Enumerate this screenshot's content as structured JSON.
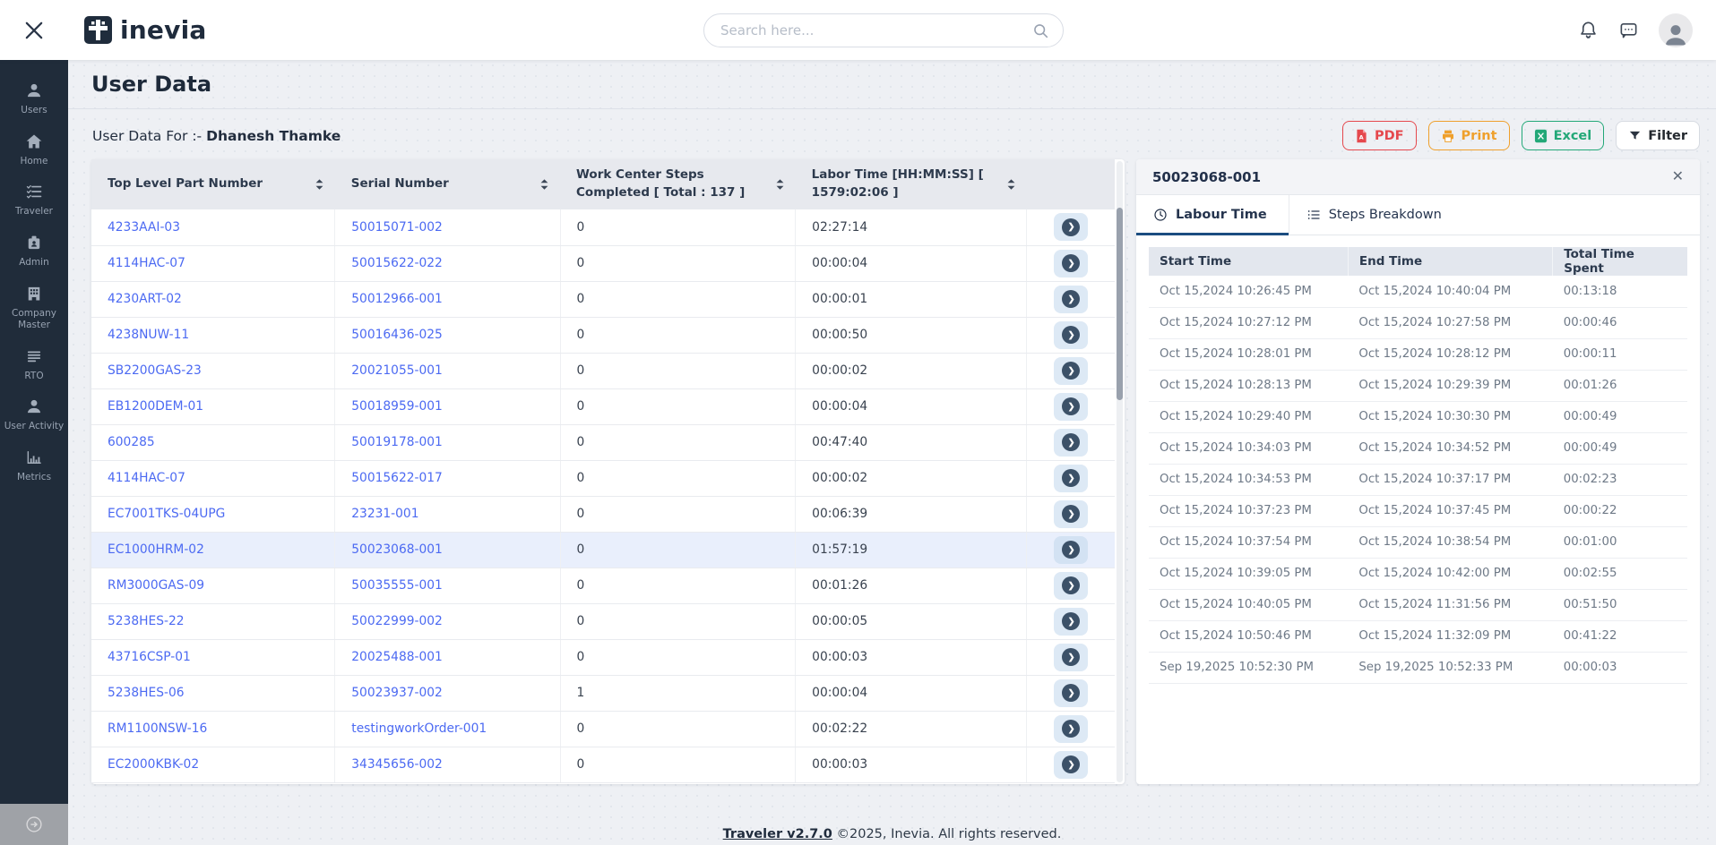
{
  "topbar": {
    "logo_text": "inevia",
    "search_placeholder": "Search here..."
  },
  "sidebar": {
    "items": [
      {
        "label": "Users"
      },
      {
        "label": "Home"
      },
      {
        "label": "Traveler"
      },
      {
        "label": "Admin"
      },
      {
        "label": "Company Master"
      },
      {
        "label": "RTO"
      },
      {
        "label": "User Activity"
      },
      {
        "label": "Metrics"
      }
    ]
  },
  "page": {
    "title": "User Data",
    "subtitle_label": "User Data For :-",
    "subtitle_name": "Dhanesh Thamke"
  },
  "toolbar": {
    "pdf_label": "PDF",
    "print_label": "Print",
    "excel_label": "Excel",
    "filter_label": "Filter"
  },
  "main_table": {
    "columns": [
      "Top Level Part Number",
      "Serial Number",
      "Work Center Steps Completed [ Total : 137 ]",
      "Labor Time [HH:MM:SS] [ 1579:02:06 ]"
    ],
    "rows": [
      {
        "part": "4233AAI-03",
        "serial": "50015071-002",
        "steps": "0",
        "labor": "02:27:14",
        "highlighted": false
      },
      {
        "part": "4114HAC-07",
        "serial": "50015622-022",
        "steps": "0",
        "labor": "00:00:04",
        "highlighted": false
      },
      {
        "part": "4230ART-02",
        "serial": "50012966-001",
        "steps": "0",
        "labor": "00:00:01",
        "highlighted": false
      },
      {
        "part": "4238NUW-11",
        "serial": "50016436-025",
        "steps": "0",
        "labor": "00:00:50",
        "highlighted": false
      },
      {
        "part": "SB2200GAS-23",
        "serial": "20021055-001",
        "steps": "0",
        "labor": "00:00:02",
        "highlighted": false
      },
      {
        "part": "EB1200DEM-01",
        "serial": "50018959-001",
        "steps": "0",
        "labor": "00:00:04",
        "highlighted": false
      },
      {
        "part": "600285",
        "serial": "50019178-001",
        "steps": "0",
        "labor": "00:47:40",
        "highlighted": false
      },
      {
        "part": "4114HAC-07",
        "serial": "50015622-017",
        "steps": "0",
        "labor": "00:00:02",
        "highlighted": false
      },
      {
        "part": "EC7001TKS-04UPG",
        "serial": "23231-001",
        "steps": "0",
        "labor": "00:06:39",
        "highlighted": false
      },
      {
        "part": "EC1000HRM-02",
        "serial": "50023068-001",
        "steps": "0",
        "labor": "01:57:19",
        "highlighted": true
      },
      {
        "part": "RM3000GAS-09",
        "serial": "50035555-001",
        "steps": "0",
        "labor": "00:01:26",
        "highlighted": false
      },
      {
        "part": "5238HES-22",
        "serial": "50022999-002",
        "steps": "0",
        "labor": "00:00:05",
        "highlighted": false
      },
      {
        "part": "43716CSP-01",
        "serial": "20025488-001",
        "steps": "0",
        "labor": "00:00:03",
        "highlighted": false
      },
      {
        "part": "5238HES-06",
        "serial": "50023937-002",
        "steps": "1",
        "labor": "00:00:04",
        "highlighted": false
      },
      {
        "part": "RM1100NSW-16",
        "serial": "testingworkOrder-001",
        "steps": "0",
        "labor": "00:02:22",
        "highlighted": false
      },
      {
        "part": "EC2000KBK-02",
        "serial": "34345656-002",
        "steps": "0",
        "labor": "00:00:03",
        "highlighted": false
      }
    ]
  },
  "detail_panel": {
    "title": "50023068-001",
    "tabs": [
      {
        "label": "Labour Time",
        "active": true
      },
      {
        "label": "Steps Breakdown",
        "active": false
      }
    ],
    "columns": [
      "Start Time",
      "End Time",
      "Total Time Spent"
    ],
    "rows": [
      {
        "start": "Oct 15,2024 10:26:45 PM",
        "end": "Oct 15,2024 10:40:04 PM",
        "total": "00:13:18"
      },
      {
        "start": "Oct 15,2024 10:27:12 PM",
        "end": "Oct 15,2024 10:27:58 PM",
        "total": "00:00:46"
      },
      {
        "start": "Oct 15,2024 10:28:01 PM",
        "end": "Oct 15,2024 10:28:12 PM",
        "total": "00:00:11"
      },
      {
        "start": "Oct 15,2024 10:28:13 PM",
        "end": "Oct 15,2024 10:29:39 PM",
        "total": "00:01:26"
      },
      {
        "start": "Oct 15,2024 10:29:40 PM",
        "end": "Oct 15,2024 10:30:30 PM",
        "total": "00:00:49"
      },
      {
        "start": "Oct 15,2024 10:34:03 PM",
        "end": "Oct 15,2024 10:34:52 PM",
        "total": "00:00:49"
      },
      {
        "start": "Oct 15,2024 10:34:53 PM",
        "end": "Oct 15,2024 10:37:17 PM",
        "total": "00:02:23"
      },
      {
        "start": "Oct 15,2024 10:37:23 PM",
        "end": "Oct 15,2024 10:37:45 PM",
        "total": "00:00:22"
      },
      {
        "start": "Oct 15,2024 10:37:54 PM",
        "end": "Oct 15,2024 10:38:54 PM",
        "total": "00:01:00"
      },
      {
        "start": "Oct 15,2024 10:39:05 PM",
        "end": "Oct 15,2024 10:42:00 PM",
        "total": "00:02:55"
      },
      {
        "start": "Oct 15,2024 10:40:05 PM",
        "end": "Oct 15,2024 11:31:56 PM",
        "total": "00:51:50"
      },
      {
        "start": "Oct 15,2024 10:50:46 PM",
        "end": "Oct 15,2024 11:32:09 PM",
        "total": "00:41:22"
      },
      {
        "start": "Sep 19,2025 10:52:30 PM",
        "end": "Sep 19,2025 10:52:33 PM",
        "total": "00:00:03"
      }
    ]
  },
  "footer": {
    "version_link": "Traveler v2.7.0",
    "copyright": "©2025, Inevia. All rights reserved."
  },
  "icons": {
    "chevron": "❯",
    "close": "✕"
  },
  "colors": {
    "sidebar_bg": "#202c3a",
    "link_blue": "#4c6af2",
    "pdf_red": "#e5484d",
    "print_orange": "#efa02c",
    "excel_green": "#23a878",
    "tab_underline": "#1b4d80",
    "highlight_row": "#e9effc",
    "header_gray": "#e7e9ee"
  }
}
